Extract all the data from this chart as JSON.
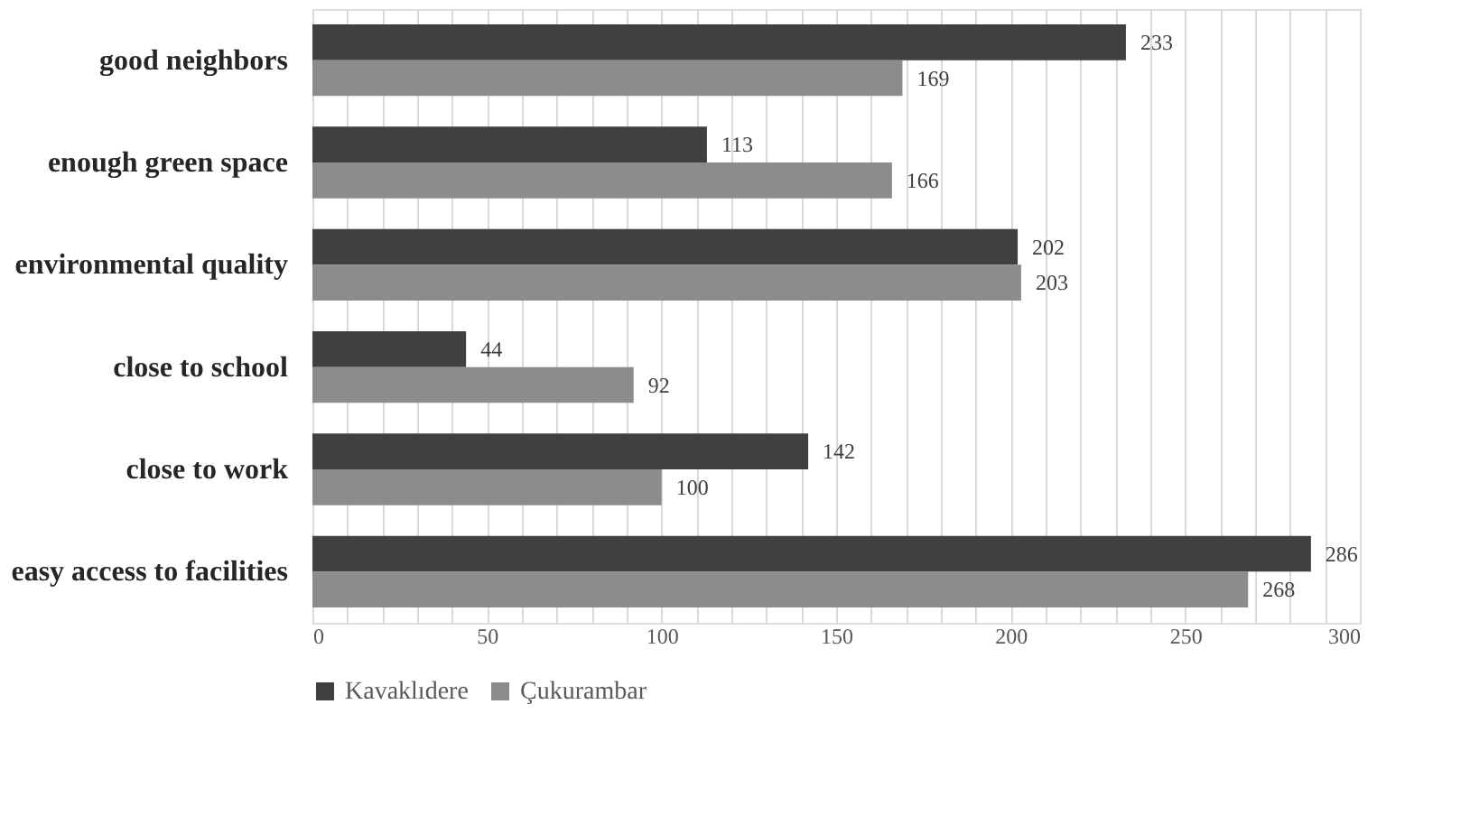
{
  "chart_data": {
    "type": "bar",
    "orientation": "horizontal",
    "categories": [
      "good neighbors",
      "enough green space",
      "environmental quality",
      "close to school",
      "close to work",
      "easy access to facilities"
    ],
    "series": [
      {
        "name": "Kavaklıdere",
        "color": "#404040",
        "values": [
          233,
          113,
          202,
          44,
          142,
          286
        ]
      },
      {
        "name": "Çukurambar",
        "color": "#8c8c8c",
        "values": [
          169,
          166,
          203,
          92,
          100,
          268
        ]
      }
    ],
    "xlim": [
      0,
      300
    ],
    "xticks": [
      0,
      {
        "value": 10,
        "label": null
      },
      {
        "value": 20,
        "label": null
      },
      {
        "value": 30,
        "label": null
      },
      {
        "value": 40,
        "label": null
      },
      50,
      {
        "value": 60,
        "label": null
      },
      {
        "value": 70,
        "label": null
      },
      {
        "value": 80,
        "label": null
      },
      {
        "value": 90,
        "label": null
      },
      100,
      {
        "value": 110,
        "label": null
      },
      {
        "value": 120,
        "label": null
      },
      {
        "value": 130,
        "label": null
      },
      {
        "value": 140,
        "label": null
      },
      150,
      {
        "value": 160,
        "label": null
      },
      {
        "value": 170,
        "label": null
      },
      {
        "value": 180,
        "label": null
      },
      {
        "value": 190,
        "label": null
      },
      200,
      {
        "value": 210,
        "label": null
      },
      {
        "value": 220,
        "label": null
      },
      {
        "value": 230,
        "label": null
      },
      {
        "value": 240,
        "label": null
      },
      250,
      {
        "value": 260,
        "label": null
      },
      {
        "value": 270,
        "label": null
      },
      {
        "value": 280,
        "label": null
      },
      {
        "value": 290,
        "label": null
      },
      300
    ],
    "grid": "x",
    "legend": "bottom",
    "data_labels": true
  }
}
